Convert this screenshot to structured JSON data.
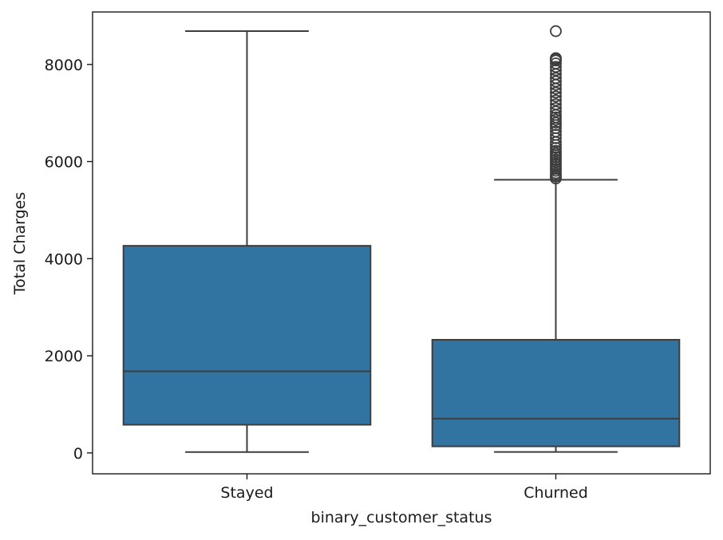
{
  "chart_data": {
    "type": "box",
    "title": "",
    "xlabel": "binary_customer_status",
    "ylabel": "Total Charges",
    "categories": [
      "Stayed",
      "Churned"
    ],
    "ylim": [
      -430,
      9080
    ],
    "yticks": [
      0,
      2000,
      4000,
      6000,
      8000
    ],
    "ytick_labels": [
      "0",
      "2000",
      "4000",
      "6000",
      "8000"
    ],
    "grid": false,
    "legend": "none",
    "box_color": "#3274a1",
    "line_color": "#3d3d3d",
    "boxes": [
      {
        "category": "Stayed",
        "whisker_low": 18,
        "q1": 580,
        "median": 1680,
        "q3": 4265,
        "whisker_high": 8685,
        "outliers": []
      },
      {
        "category": "Churned",
        "whisker_low": 19,
        "q1": 135,
        "median": 705,
        "q3": 2330,
        "whisker_high": 5625,
        "outliers": [
          5650,
          5690,
          5720,
          5760,
          5810,
          5850,
          5890,
          5940,
          5990,
          6040,
          6090,
          6130,
          6170,
          6220,
          6280,
          6340,
          6400,
          6480,
          6550,
          6620,
          6690,
          6750,
          6800,
          6860,
          6910,
          6960,
          7030,
          7100,
          7180,
          7260,
          7340,
          7420,
          7500,
          7580,
          7650,
          7720,
          7800,
          7880,
          7950,
          8020,
          8080,
          8110,
          8130,
          8685
        ]
      }
    ]
  }
}
